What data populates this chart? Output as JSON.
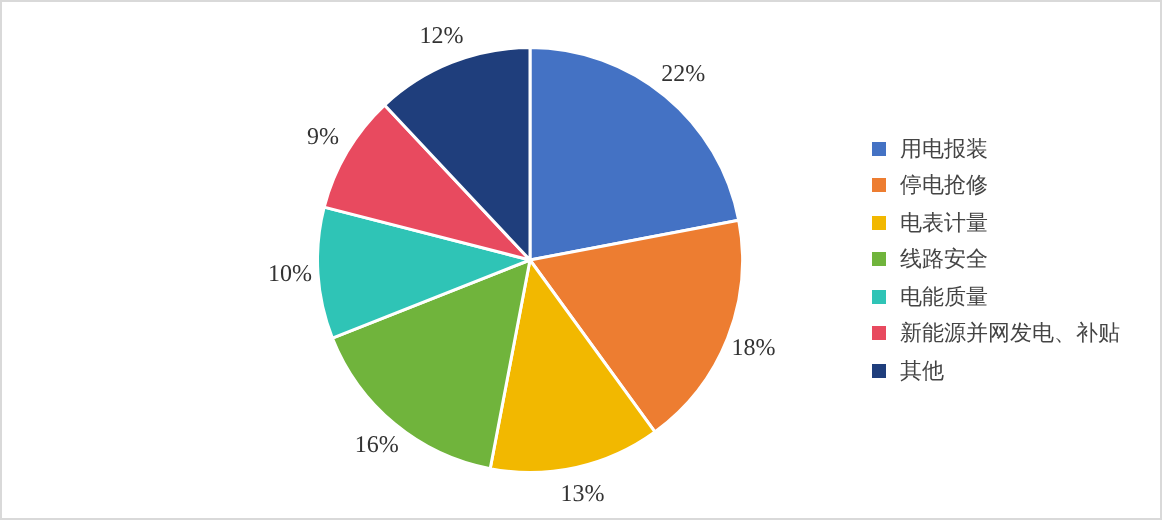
{
  "chart_data": {
    "type": "pie",
    "categories": [
      "用电报装",
      "停电抢修",
      "电表计量",
      "线路安全",
      "电能质量",
      "新能源并网发电、补贴",
      "其他"
    ],
    "values": [
      22,
      18,
      13,
      16,
      10,
      9,
      12
    ],
    "value_labels": [
      "22%",
      "18%",
      "13%",
      "16%",
      "10%",
      "9%",
      "12%"
    ],
    "colors": [
      "#4472c4",
      "#ed7d31",
      "#f2b800",
      "#70b43c",
      "#2fc4b6",
      "#e84a5f",
      "#1f3e7c"
    ],
    "legend": "right"
  }
}
